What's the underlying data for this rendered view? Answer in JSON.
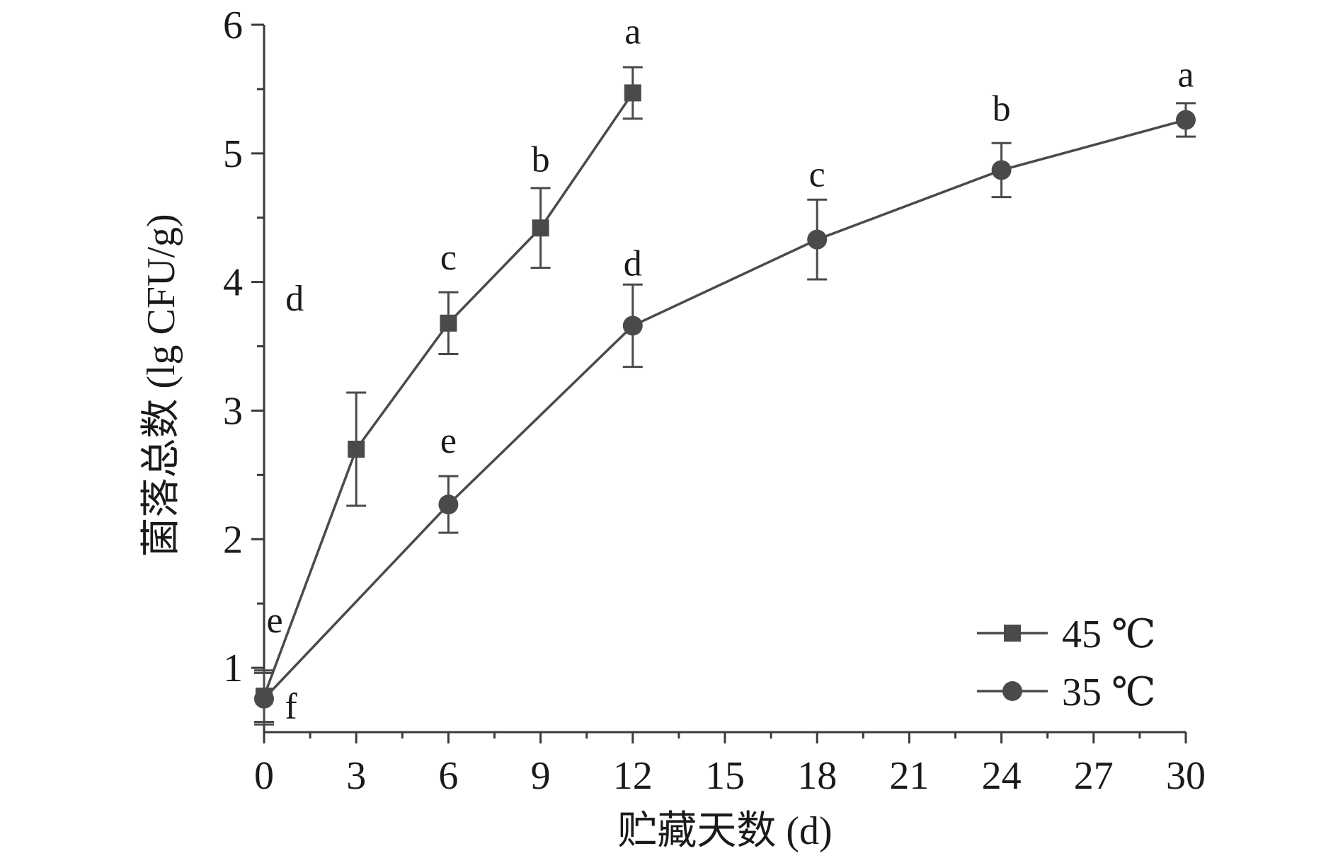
{
  "chart_data": {
    "type": "line",
    "xlabel": "贮藏天数 (d)",
    "ylabel": "菌落总数 (lg CFU/g)",
    "xlim": [
      0,
      30
    ],
    "ylim": [
      0.5,
      6
    ],
    "x_ticks": [
      0,
      3,
      6,
      9,
      12,
      15,
      18,
      21,
      24,
      27,
      30
    ],
    "y_ticks": [
      1,
      2,
      3,
      4,
      5,
      6
    ],
    "grid": false,
    "legend_position": "bottom-right",
    "series": [
      {
        "name": "45 ℃",
        "marker": "square",
        "color": "#4a4a4a",
        "x": [
          0,
          3,
          6,
          9,
          12
        ],
        "y": [
          0.78,
          2.7,
          3.68,
          4.42,
          5.47
        ],
        "error": [
          0.2,
          0.44,
          0.24,
          0.31,
          0.2
        ],
        "significance": [
          "e",
          "d",
          "c",
          "b",
          "a"
        ]
      },
      {
        "name": "35 ℃",
        "marker": "circle",
        "color": "#4a4a4a",
        "x": [
          0,
          6,
          12,
          18,
          24,
          30
        ],
        "y": [
          0.76,
          2.27,
          3.66,
          4.33,
          4.87,
          5.26
        ],
        "error": [
          0.2,
          0.22,
          0.32,
          0.31,
          0.21,
          0.13
        ],
        "significance": [
          "f",
          "e",
          "d",
          "c",
          "b",
          "a"
        ]
      }
    ]
  }
}
